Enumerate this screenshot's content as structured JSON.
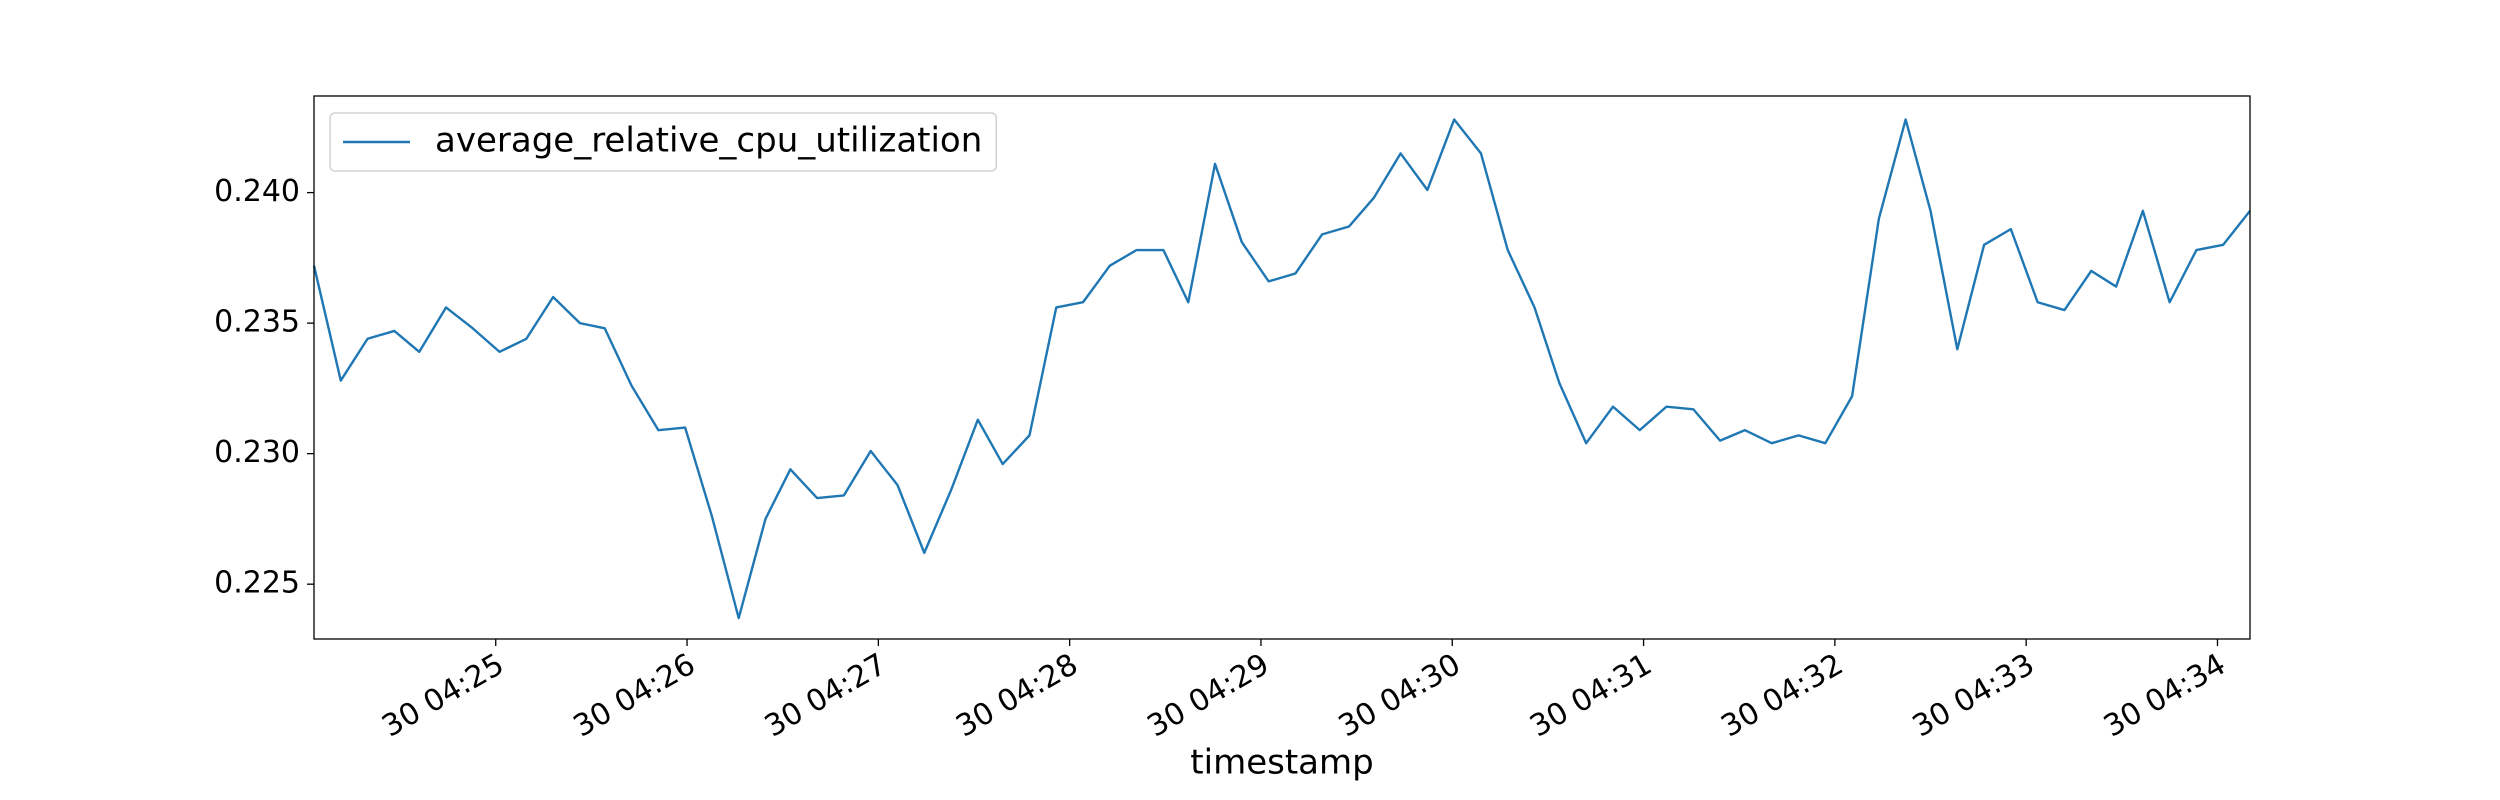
{
  "chart_data": {
    "type": "line",
    "xlabel": "timestamp",
    "x": [
      24.05,
      24.19,
      24.33,
      24.47,
      24.6,
      24.74,
      24.88,
      25.02,
      25.16,
      25.3,
      25.44,
      25.57,
      25.71,
      25.85,
      25.99,
      26.13,
      26.27,
      26.41,
      26.54,
      26.68,
      26.82,
      26.96,
      27.1,
      27.24,
      27.38,
      27.52,
      27.65,
      27.79,
      27.93,
      28.07,
      28.21,
      28.35,
      28.49,
      28.62,
      28.76,
      28.9,
      29.04,
      29.18,
      29.32,
      29.46,
      29.59,
      29.73,
      29.87,
      30.01,
      30.15,
      30.29,
      30.43,
      30.56,
      30.7,
      30.84,
      30.98,
      31.12,
      31.26,
      31.4,
      31.53,
      31.67,
      31.81,
      31.95,
      32.09,
      32.23,
      32.37,
      32.5,
      32.64,
      32.78,
      32.92,
      33.06,
      33.2,
      33.34,
      33.47,
      33.61,
      33.75,
      33.89,
      34.03,
      34.17
    ],
    "series": [
      {
        "name": "average_relative_cpu_utilization",
        "color": "#1f77b4",
        "values": [
          0.2372,
          0.2328,
          0.2344,
          0.2347,
          0.2339,
          0.2356,
          0.2348,
          0.2339,
          0.2344,
          0.236,
          0.235,
          0.2348,
          0.2326,
          0.2309,
          0.231,
          0.2276,
          0.2237,
          0.2275,
          0.2294,
          0.2283,
          0.2284,
          0.2301,
          0.2288,
          0.2262,
          0.2286,
          0.2313,
          0.2296,
          0.2307,
          0.2356,
          0.2358,
          0.2372,
          0.2378,
          0.2378,
          0.2358,
          0.2411,
          0.2381,
          0.2366,
          0.2369,
          0.2384,
          0.2387,
          0.2398,
          0.2415,
          0.2401,
          0.2428,
          0.2415,
          0.2378,
          0.2356,
          0.2327,
          0.2304,
          0.2318,
          0.2309,
          0.2318,
          0.2317,
          0.2305,
          0.2309,
          0.2304,
          0.2307,
          0.2304,
          0.2322,
          0.239,
          0.2428,
          0.2393,
          0.234,
          0.238,
          0.2386,
          0.2358,
          0.2355,
          0.237,
          0.2364,
          0.2393,
          0.2358,
          0.2378,
          0.238,
          0.2393
        ]
      }
    ],
    "xlim": [
      24.05,
      34.17
    ],
    "xticks": [
      {
        "value": 25,
        "label": "30 04:25"
      },
      {
        "value": 26,
        "label": "30 04:26"
      },
      {
        "value": 27,
        "label": "30 04:27"
      },
      {
        "value": 28,
        "label": "30 04:28"
      },
      {
        "value": 29,
        "label": "30 04:29"
      },
      {
        "value": 30,
        "label": "30 04:30"
      },
      {
        "value": 31,
        "label": "30 04:31"
      },
      {
        "value": 32,
        "label": "30 04:32"
      },
      {
        "value": 33,
        "label": "30 04:33"
      },
      {
        "value": 34,
        "label": "30 04:34"
      }
    ],
    "ylim": [
      0.2229,
      0.2437
    ],
    "yticks": [
      0.225,
      {
        "value": 0.23,
        "label": "0.230"
      },
      0.235,
      {
        "value": 0.24,
        "label": "0.240"
      }
    ],
    "legend": "upper left"
  }
}
